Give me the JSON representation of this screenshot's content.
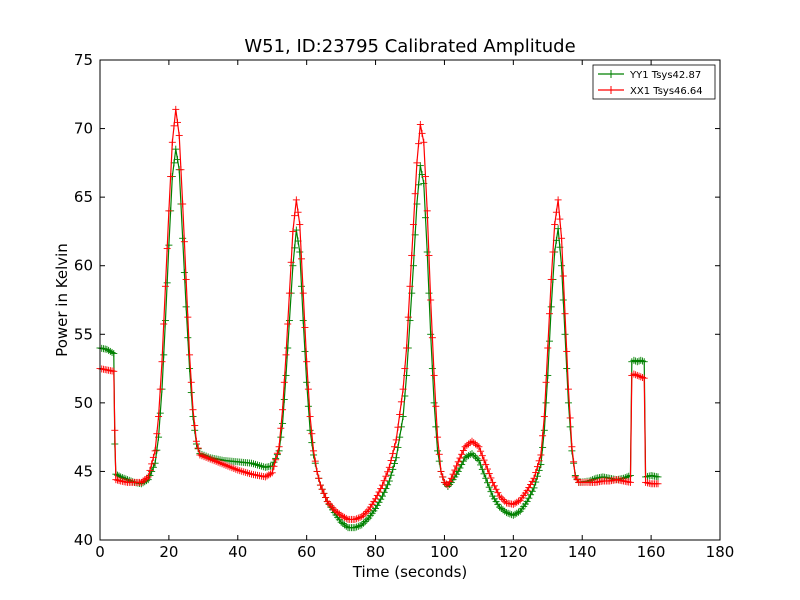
{
  "chart_data": {
    "type": "line",
    "title": "W51, ID:23795 Calibrated Amplitude",
    "xlabel": "Time (seconds)",
    "ylabel": "Power in Kelvin",
    "xlim": [
      0,
      180
    ],
    "ylim": [
      40,
      75
    ],
    "xticks": [
      "0",
      "20",
      "40",
      "60",
      "80",
      "100",
      "120",
      "140",
      "160",
      "180"
    ],
    "yticks": [
      "40",
      "45",
      "50",
      "55",
      "60",
      "65",
      "70",
      "75"
    ],
    "grid": false,
    "legend_position": "top-right",
    "marker": "+",
    "series": [
      {
        "name": "YY1 Tsys42.87",
        "color": "#008000",
        "points": [
          [
            0,
            54.0
          ],
          [
            2,
            53.9
          ],
          [
            4,
            53.6
          ],
          [
            4.3,
            47
          ],
          [
            4.6,
            44.8
          ],
          [
            6,
            44.6
          ],
          [
            8,
            44.4
          ],
          [
            10,
            44.2
          ],
          [
            12,
            44.1
          ],
          [
            14,
            44.4
          ],
          [
            16,
            45.6
          ],
          [
            17,
            47.5
          ],
          [
            18,
            51
          ],
          [
            19,
            56
          ],
          [
            20,
            61.5
          ],
          [
            21,
            66.5
          ],
          [
            22,
            68.5
          ],
          [
            23,
            67
          ],
          [
            24,
            62
          ],
          [
            25,
            57
          ],
          [
            26,
            52.5
          ],
          [
            27,
            49
          ],
          [
            28,
            47
          ],
          [
            29,
            46.3
          ],
          [
            32,
            46.0
          ],
          [
            36,
            45.8
          ],
          [
            40,
            45.7
          ],
          [
            44,
            45.6
          ],
          [
            48,
            45.3
          ],
          [
            50,
            45.4
          ],
          [
            52,
            46.5
          ],
          [
            53,
            48.5
          ],
          [
            54,
            52
          ],
          [
            55,
            56
          ],
          [
            56,
            60
          ],
          [
            57,
            62.6
          ],
          [
            58,
            61
          ],
          [
            59,
            56
          ],
          [
            60,
            51.5
          ],
          [
            61,
            48
          ],
          [
            62,
            46.2
          ],
          [
            63,
            45
          ],
          [
            64,
            44
          ],
          [
            66,
            42.8
          ],
          [
            68,
            42
          ],
          [
            70,
            41.3
          ],
          [
            72,
            40.9
          ],
          [
            74,
            40.9
          ],
          [
            76,
            41.1
          ],
          [
            78,
            41.6
          ],
          [
            80,
            42.3
          ],
          [
            82,
            43.2
          ],
          [
            84,
            44.3
          ],
          [
            86,
            46
          ],
          [
            88,
            49
          ],
          [
            89,
            52
          ],
          [
            90,
            56
          ],
          [
            91,
            60
          ],
          [
            92,
            64.5
          ],
          [
            93,
            67.3
          ],
          [
            94,
            66
          ],
          [
            95,
            61
          ],
          [
            96,
            55
          ],
          [
            97,
            50
          ],
          [
            98,
            46.5
          ],
          [
            99,
            45
          ],
          [
            100,
            44.2
          ],
          [
            101,
            43.9
          ],
          [
            102,
            44.2
          ],
          [
            104,
            45
          ],
          [
            106,
            46
          ],
          [
            108,
            46.3
          ],
          [
            110,
            45.8
          ],
          [
            112,
            44.5
          ],
          [
            114,
            43.2
          ],
          [
            116,
            42.4
          ],
          [
            118,
            42
          ],
          [
            120,
            41.8
          ],
          [
            122,
            42.1
          ],
          [
            124,
            42.8
          ],
          [
            126,
            43.8
          ],
          [
            128,
            45.5
          ],
          [
            129,
            48
          ],
          [
            130,
            52
          ],
          [
            131,
            57
          ],
          [
            132,
            61
          ],
          [
            133,
            62.7
          ],
          [
            134,
            60
          ],
          [
            135,
            55
          ],
          [
            136,
            50
          ],
          [
            137,
            46.5
          ],
          [
            138,
            44.7
          ],
          [
            139,
            44.2
          ],
          [
            142,
            44.3
          ],
          [
            144,
            44.5
          ],
          [
            146,
            44.6
          ],
          [
            148,
            44.5
          ],
          [
            150,
            44.4
          ],
          [
            152,
            44.5
          ],
          [
            154,
            44.7
          ],
          [
            154.4,
            53.0
          ],
          [
            155,
            53.1
          ],
          [
            156,
            53.0
          ],
          [
            157,
            53.1
          ],
          [
            158,
            53.0
          ],
          [
            158.4,
            44.6
          ],
          [
            160,
            44.7
          ],
          [
            162,
            44.6
          ]
        ]
      },
      {
        "name": "XX1 Tsys46.64",
        "color": "#ff0000",
        "points": [
          [
            0,
            52.5
          ],
          [
            2,
            52.4
          ],
          [
            4,
            52.3
          ],
          [
            4.3,
            48
          ],
          [
            4.6,
            44.4
          ],
          [
            6,
            44.3
          ],
          [
            8,
            44.2
          ],
          [
            10,
            44.2
          ],
          [
            12,
            44.2
          ],
          [
            14,
            44.6
          ],
          [
            16,
            46.5
          ],
          [
            17,
            49
          ],
          [
            18,
            53
          ],
          [
            19,
            58.5
          ],
          [
            20,
            64
          ],
          [
            21,
            69
          ],
          [
            22,
            71.4
          ],
          [
            23,
            69.5
          ],
          [
            24,
            64.5
          ],
          [
            25,
            59
          ],
          [
            26,
            53.5
          ],
          [
            27,
            49.5
          ],
          [
            28,
            47.2
          ],
          [
            29,
            46.2
          ],
          [
            32,
            45.9
          ],
          [
            36,
            45.5
          ],
          [
            40,
            45.1
          ],
          [
            44,
            44.8
          ],
          [
            48,
            44.6
          ],
          [
            50,
            44.9
          ],
          [
            52,
            46.8
          ],
          [
            53,
            49.5
          ],
          [
            54,
            53.5
          ],
          [
            55,
            58
          ],
          [
            56,
            62.5
          ],
          [
            57,
            64.8
          ],
          [
            58,
            63
          ],
          [
            59,
            58
          ],
          [
            60,
            53
          ],
          [
            61,
            49
          ],
          [
            62,
            46.5
          ],
          [
            63,
            45
          ],
          [
            64,
            44
          ],
          [
            66,
            42.8
          ],
          [
            68,
            42.2
          ],
          [
            70,
            41.8
          ],
          [
            72,
            41.5
          ],
          [
            74,
            41.5
          ],
          [
            76,
            41.7
          ],
          [
            78,
            42.2
          ],
          [
            80,
            43
          ],
          [
            82,
            44
          ],
          [
            84,
            45.3
          ],
          [
            86,
            47.3
          ],
          [
            88,
            51
          ],
          [
            89,
            54
          ],
          [
            90,
            58.5
          ],
          [
            91,
            63
          ],
          [
            92,
            67.5
          ],
          [
            93,
            70.3
          ],
          [
            94,
            69
          ],
          [
            95,
            64
          ],
          [
            96,
            57.5
          ],
          [
            97,
            52
          ],
          [
            98,
            47.5
          ],
          [
            99,
            45
          ],
          [
            100,
            44.2
          ],
          [
            101,
            44
          ],
          [
            102,
            44.5
          ],
          [
            104,
            45.7
          ],
          [
            106,
            46.8
          ],
          [
            108,
            47.2
          ],
          [
            110,
            46.8
          ],
          [
            112,
            45.5
          ],
          [
            114,
            44.2
          ],
          [
            116,
            43.2
          ],
          [
            118,
            42.7
          ],
          [
            120,
            42.6
          ],
          [
            122,
            42.9
          ],
          [
            124,
            43.6
          ],
          [
            126,
            44.5
          ],
          [
            128,
            46.2
          ],
          [
            129,
            49
          ],
          [
            130,
            54
          ],
          [
            131,
            59
          ],
          [
            132,
            63
          ],
          [
            133,
            64.8
          ],
          [
            134,
            62
          ],
          [
            135,
            56.5
          ],
          [
            136,
            51
          ],
          [
            137,
            46.8
          ],
          [
            138,
            44.6
          ],
          [
            139,
            44.2
          ],
          [
            142,
            44.2
          ],
          [
            144,
            44.2
          ],
          [
            146,
            44.3
          ],
          [
            148,
            44.3
          ],
          [
            150,
            44.4
          ],
          [
            152,
            44.3
          ],
          [
            154,
            44.2
          ],
          [
            154.4,
            52.0
          ],
          [
            155,
            52.1
          ],
          [
            156,
            52.0
          ],
          [
            157,
            51.9
          ],
          [
            158,
            51.8
          ],
          [
            158.4,
            44.2
          ],
          [
            160,
            44.1
          ],
          [
            162,
            44.1
          ]
        ]
      }
    ]
  }
}
